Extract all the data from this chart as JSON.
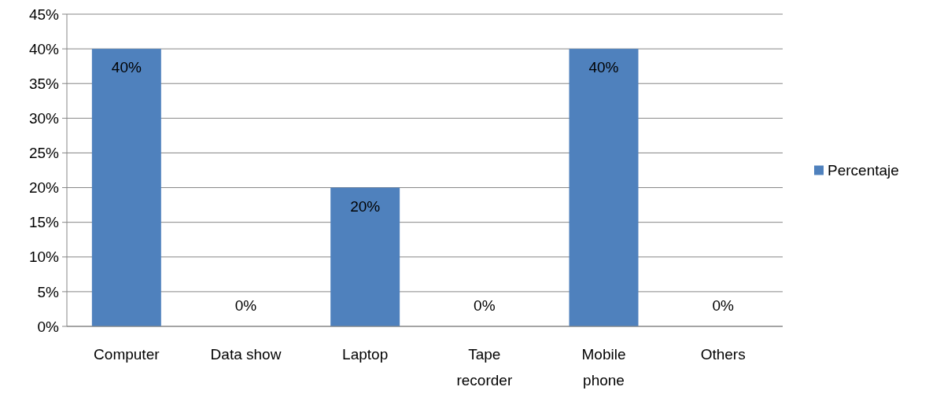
{
  "chart_data": {
    "type": "bar",
    "categories": [
      "Computer",
      "Data show",
      "Laptop",
      "Tape recorder",
      "Mobile phone",
      "Others"
    ],
    "series": [
      {
        "name": "Percentaje",
        "color": "#4f81bd",
        "values": [
          40,
          0,
          20,
          0,
          40,
          0
        ],
        "value_labels": [
          "40%",
          "0%",
          "20%",
          "0%",
          "40%",
          "0%"
        ]
      }
    ],
    "ylim": [
      0,
      45
    ],
    "yticks": [
      {
        "value": 0,
        "label": "0%"
      },
      {
        "value": 5,
        "label": "5%"
      },
      {
        "value": 10,
        "label": "10%"
      },
      {
        "value": 15,
        "label": "15%"
      },
      {
        "value": 20,
        "label": "20%"
      },
      {
        "value": 25,
        "label": "25%"
      },
      {
        "value": 30,
        "label": "30%"
      },
      {
        "value": 35,
        "label": "35%"
      },
      {
        "value": 40,
        "label": "40%"
      },
      {
        "value": 45,
        "label": "45%"
      }
    ],
    "grid": "y",
    "legend": "right"
  }
}
